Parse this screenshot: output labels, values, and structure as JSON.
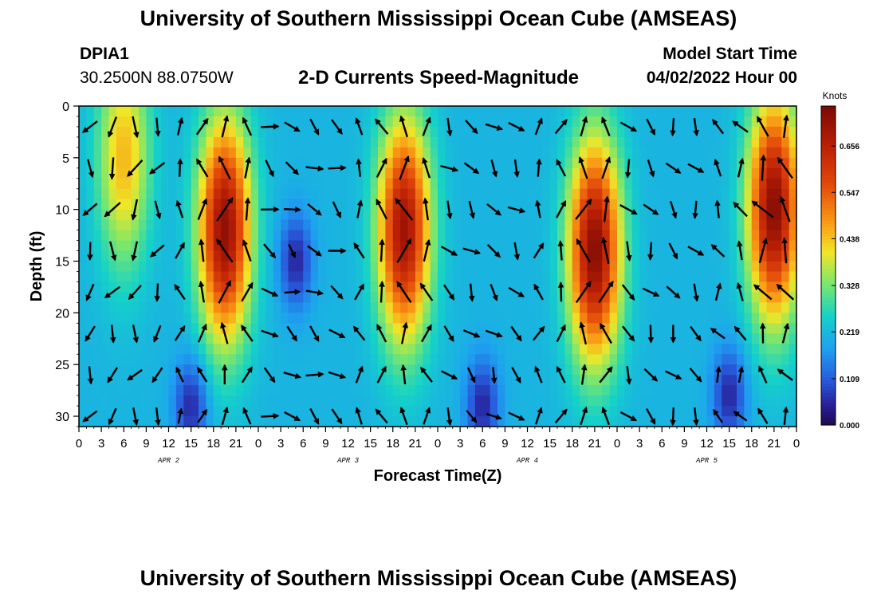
{
  "header": {
    "title": "University of Southern Mississippi Ocean Cube (AMSEAS)",
    "station_id": "DPIA1",
    "station_coords": "30.2500N  88.0750W",
    "subtitle": "2-D Currents Speed-Magnitude",
    "model_start_label": "Model Start Time",
    "model_start_value": "04/02/2022 Hour 00"
  },
  "footer": {
    "title": "University of Southern Mississippi Ocean Cube (AMSEAS)"
  },
  "chart_data": {
    "type": "heatmap",
    "title": "2-D Currents Speed-Magnitude",
    "xlabel": "Forecast Time(Z)",
    "ylabel": "Depth (ft)",
    "x_range_hours": [
      0,
      96
    ],
    "x_tick_labels": [
      "0",
      "3",
      "6",
      "9",
      "12",
      "15",
      "18",
      "21",
      "0",
      "3",
      "6",
      "9",
      "12",
      "15",
      "18",
      "21",
      "0",
      "3",
      "6",
      "9",
      "12",
      "15",
      "18",
      "21",
      "0",
      "3",
      "6",
      "9",
      "12",
      "15",
      "18",
      "21",
      "0"
    ],
    "day_labels": [
      "APR 2",
      "APR 3",
      "APR 4",
      "APR 5"
    ],
    "y_range": [
      0,
      31
    ],
    "y_ticks": [
      0,
      5,
      10,
      15,
      20,
      25,
      30
    ],
    "y_tick_labels": [
      "0",
      "5",
      "10",
      "15",
      "20",
      "25",
      "30"
    ],
    "colorbar": {
      "label": "Knots",
      "range": [
        0.0,
        0.75
      ],
      "tick_values": [
        0.0,
        0.109,
        0.219,
        0.328,
        0.438,
        0.547,
        0.656
      ],
      "tick_labels": [
        "0.000",
        "0.109",
        "0.219",
        "0.328",
        "0.438",
        "0.547",
        "0.656"
      ]
    },
    "speed_peaks": [
      {
        "hour": 6,
        "depth": 5,
        "speed": 0.45
      },
      {
        "hour": 19.5,
        "depth": 12,
        "speed": 0.72
      },
      {
        "hour": 43.5,
        "depth": 12,
        "speed": 0.7
      },
      {
        "hour": 69,
        "depth": 14,
        "speed": 0.73
      },
      {
        "hour": 93,
        "depth": 10,
        "speed": 0.73
      }
    ],
    "speed_lows": [
      {
        "hour": 15,
        "depth": 29,
        "speed": 0.02
      },
      {
        "hour": 29,
        "depth": 15,
        "speed": 0.08
      },
      {
        "hour": 54,
        "depth": 29,
        "speed": 0.03
      },
      {
        "hour": 87,
        "depth": 28,
        "speed": 0.03
      }
    ],
    "vector_direction_deg": [
      {
        "hour": 6,
        "dir": 340
      },
      {
        "hour": 18,
        "dir": 180
      },
      {
        "hour": 30,
        "dir": 60
      },
      {
        "hour": 42,
        "dir": 185
      },
      {
        "hour": 54,
        "dir": 40
      },
      {
        "hour": 66,
        "dir": 175
      },
      {
        "hour": 78,
        "dir": 30
      },
      {
        "hour": 90,
        "dir": 200
      }
    ]
  }
}
